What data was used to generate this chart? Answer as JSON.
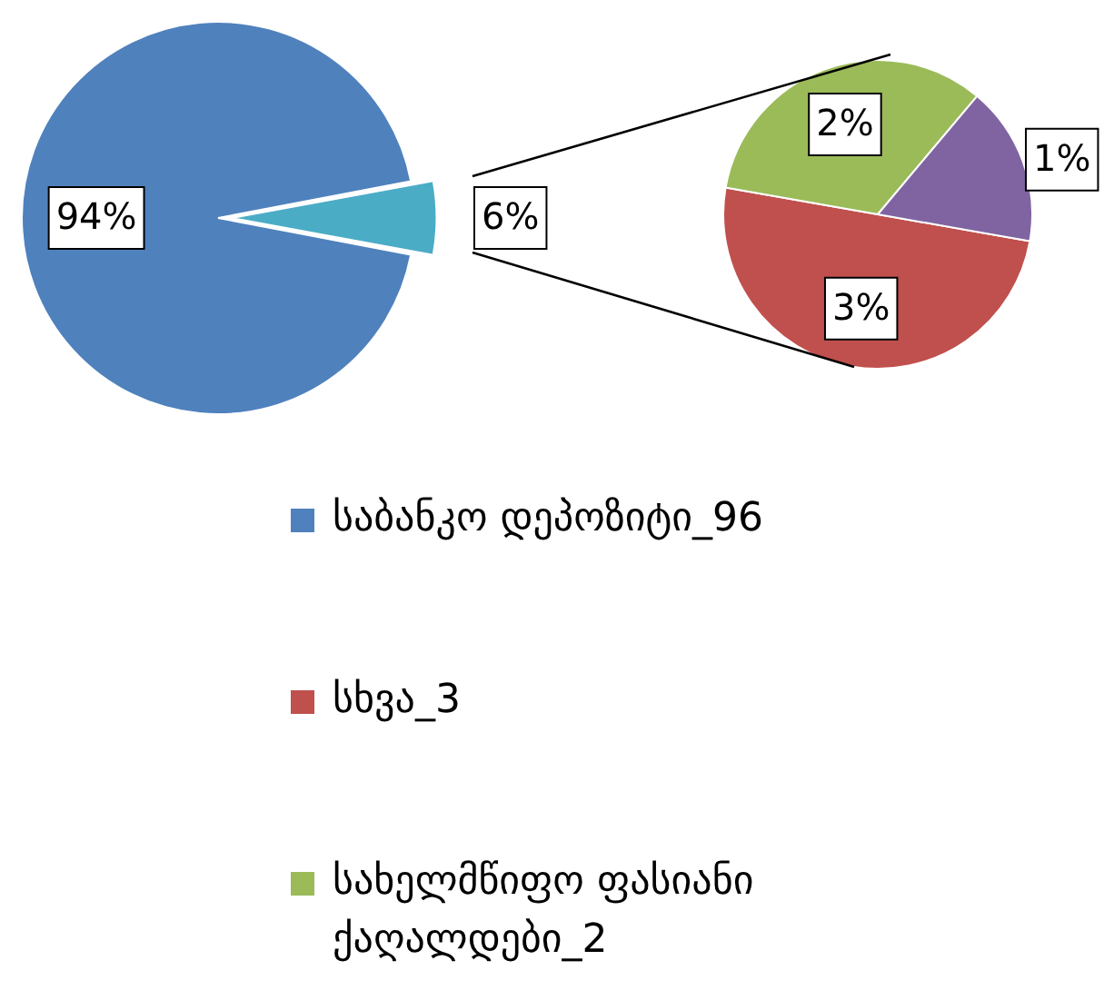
{
  "chart_data": [
    {
      "type": "pie",
      "categories": [
        "საბანკო დეპოზიტი_96",
        null
      ],
      "values": [
        94,
        6
      ],
      "colors": [
        "#4f81bd",
        "#4bacc6"
      ],
      "value_labels": [
        "94%",
        "6%"
      ],
      "legend": "bottom"
    },
    {
      "type": "pie",
      "categories": [
        "სხვა_3",
        "სახელმწიფო ფასიანი ქაღალდები_2",
        null
      ],
      "values": [
        3,
        2,
        1
      ],
      "colors": [
        "#c0504d",
        "#9bbb59",
        "#8064a2"
      ],
      "value_labels": [
        "3%",
        "2%",
        "1%"
      ],
      "legend": "bottom"
    }
  ]
}
